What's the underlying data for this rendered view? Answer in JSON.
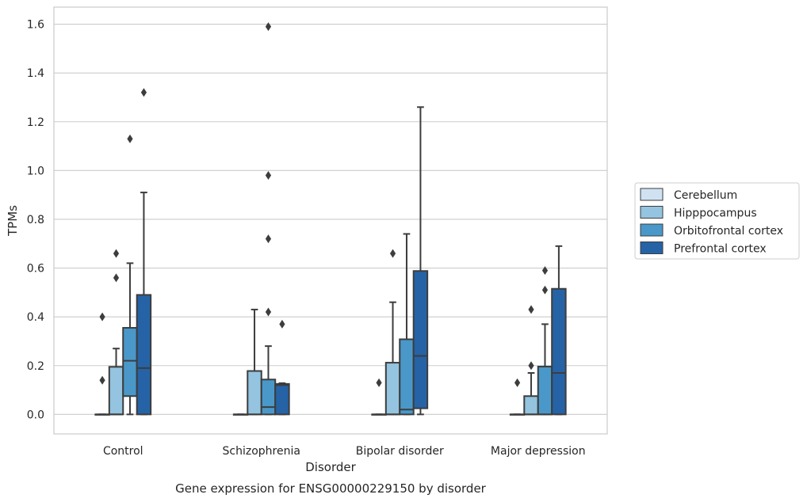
{
  "chart_data": {
    "type": "box",
    "title": "",
    "caption": "Gene expression for ENSG00000229150 by disorder",
    "xlabel": "Disorder",
    "ylabel": "TPMs",
    "ylim": [
      -0.08,
      1.67
    ],
    "yticks": [
      0.0,
      0.2,
      0.4,
      0.6,
      0.8,
      1.0,
      1.2,
      1.4,
      1.6
    ],
    "ytick_labels": [
      "0.0",
      "0.2",
      "0.4",
      "0.6",
      "0.8",
      "1.0",
      "1.2",
      "1.4",
      "1.6"
    ],
    "grid": "horizontal",
    "legend_position": "right",
    "categories": [
      "Control",
      "Schizophrenia",
      "Bipolar disorder",
      "Major depression"
    ],
    "series": [
      {
        "name": "Cerebellum",
        "color": "#d0e1f2",
        "boxes": [
          {
            "whislo": 0.0,
            "q1": 0.0,
            "med": 0.0,
            "q3": 0.0,
            "whishi": 0.0,
            "fliers": [
              0.14,
              0.4
            ]
          },
          {
            "whislo": 0.0,
            "q1": 0.0,
            "med": 0.0,
            "q3": 0.0,
            "whishi": 0.0,
            "fliers": []
          },
          {
            "whislo": 0.0,
            "q1": 0.0,
            "med": 0.0,
            "q3": 0.0,
            "whishi": 0.0,
            "fliers": [
              0.13
            ]
          },
          {
            "whislo": 0.0,
            "q1": 0.0,
            "med": 0.0,
            "q3": 0.0,
            "whishi": 0.0,
            "fliers": [
              0.13
            ]
          }
        ]
      },
      {
        "name": "Hipppocampus",
        "color": "#94c4df",
        "boxes": [
          {
            "whislo": 0.0,
            "q1": 0.0,
            "med": 0.0,
            "q3": 0.195,
            "whishi": 0.27,
            "fliers": [
              0.56,
              0.66
            ]
          },
          {
            "whislo": 0.0,
            "q1": 0.0,
            "med": 0.0,
            "q3": 0.178,
            "whishi": 0.43,
            "fliers": []
          },
          {
            "whislo": 0.0,
            "q1": 0.0,
            "med": 0.0,
            "q3": 0.212,
            "whishi": 0.46,
            "fliers": [
              0.66
            ]
          },
          {
            "whislo": 0.0,
            "q1": 0.0,
            "med": 0.0,
            "q3": 0.075,
            "whishi": 0.17,
            "fliers": [
              0.2,
              0.43
            ]
          }
        ]
      },
      {
        "name": "Orbitofrontal cortex",
        "color": "#4a98c9",
        "boxes": [
          {
            "whislo": 0.0,
            "q1": 0.075,
            "med": 0.22,
            "q3": 0.355,
            "whishi": 0.62,
            "fliers": [
              1.13
            ]
          },
          {
            "whislo": 0.0,
            "q1": 0.0,
            "med": 0.03,
            "q3": 0.143,
            "whishi": 0.28,
            "fliers": [
              0.42,
              0.72,
              0.98,
              1.59
            ]
          },
          {
            "whislo": 0.0,
            "q1": 0.0,
            "med": 0.02,
            "q3": 0.308,
            "whishi": 0.74,
            "fliers": []
          },
          {
            "whislo": 0.0,
            "q1": 0.0,
            "med": 0.0,
            "q3": 0.196,
            "whishi": 0.37,
            "fliers": [
              0.51,
              0.59
            ]
          }
        ]
      },
      {
        "name": "Prefrontal cortex",
        "color": "#2563a6",
        "boxes": [
          {
            "whislo": 0.0,
            "q1": 0.0,
            "med": 0.19,
            "q3": 0.49,
            "whishi": 0.91,
            "fliers": [
              1.32
            ]
          },
          {
            "whislo": 0.0,
            "q1": 0.0,
            "med": 0.12,
            "q3": 0.125,
            "whishi": 0.128,
            "fliers": [
              0.37
            ]
          },
          {
            "whislo": 0.0,
            "q1": 0.025,
            "med": 0.24,
            "q3": 0.588,
            "whishi": 1.26,
            "fliers": []
          },
          {
            "whislo": 0.0,
            "q1": 0.0,
            "med": 0.17,
            "q3": 0.515,
            "whishi": 0.69,
            "fliers": []
          }
        ]
      }
    ]
  }
}
